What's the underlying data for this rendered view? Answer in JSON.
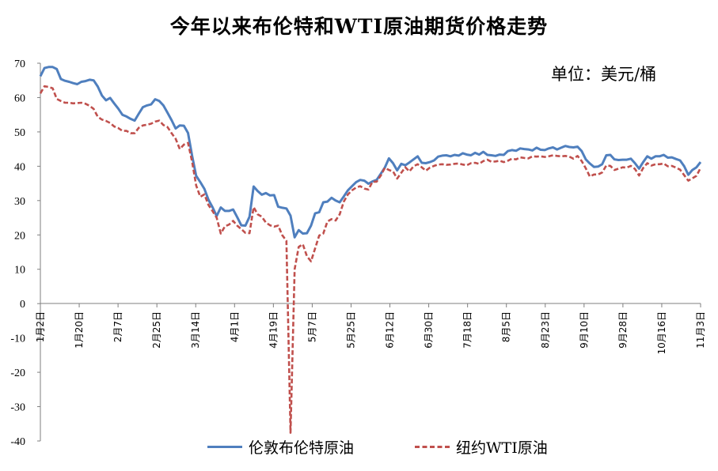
{
  "title": "今年以来布伦特和WTI原油期货价格走势",
  "unit_label": "单位：美元/桶",
  "chart_data": {
    "type": "line",
    "title": "今年以来布伦特和WTI原油期货价格走势",
    "xlabel": "",
    "ylabel": "",
    "ylim": [
      -40,
      70
    ],
    "y_ticks": [
      70,
      60,
      50,
      40,
      30,
      20,
      10,
      0,
      -10,
      -20,
      -30,
      -40
    ],
    "x_tick_labels": [
      "1月2日",
      "1月20日",
      "2月7日",
      "2月25日",
      "3月14日",
      "4月1日",
      "4月19日",
      "5月7日",
      "5月25日",
      "6月12日",
      "6月30日",
      "7月18日",
      "8月5日",
      "8月23日",
      "9月10日",
      "9月28日",
      "10月16日",
      "11月3日"
    ],
    "grid": false,
    "legend_position": "bottom",
    "colors": {
      "brent": "#4F7FBE",
      "wti": "#C0504D"
    },
    "series": [
      {
        "name": "伦敦布伦特原油",
        "style": "solid",
        "points": [
          [
            0,
            66.2
          ],
          [
            1,
            68.6
          ],
          [
            2,
            68.9
          ],
          [
            3,
            68.9
          ],
          [
            4,
            68.3
          ],
          [
            5,
            65.4
          ],
          [
            6,
            64.9
          ],
          [
            7,
            64.6
          ],
          [
            8,
            64.2
          ],
          [
            9,
            63.9
          ],
          [
            10,
            64.6
          ],
          [
            11,
            64.8
          ],
          [
            12,
            65.2
          ],
          [
            13,
            65.0
          ],
          [
            14,
            63.2
          ],
          [
            15,
            60.6
          ],
          [
            16,
            59.2
          ],
          [
            17,
            59.9
          ],
          [
            18,
            58.3
          ],
          [
            19,
            56.8
          ],
          [
            20,
            55.0
          ],
          [
            21,
            54.5
          ],
          [
            22,
            53.8
          ],
          [
            23,
            53.3
          ],
          [
            24,
            55.3
          ],
          [
            25,
            57.2
          ],
          [
            26,
            57.7
          ],
          [
            27,
            58.0
          ],
          [
            28,
            59.5
          ],
          [
            29,
            59.0
          ],
          [
            30,
            57.7
          ],
          [
            31,
            55.6
          ],
          [
            32,
            53.4
          ],
          [
            33,
            51.0
          ],
          [
            34,
            51.9
          ],
          [
            35,
            51.8
          ],
          [
            36,
            49.7
          ],
          [
            37,
            43.0
          ],
          [
            38,
            37.2
          ],
          [
            39,
            35.4
          ],
          [
            40,
            33.4
          ],
          [
            41,
            30.2
          ],
          [
            42,
            28.0
          ],
          [
            43,
            25.5
          ],
          [
            44,
            28.0
          ],
          [
            45,
            27.0
          ],
          [
            46,
            27.0
          ],
          [
            47,
            27.4
          ],
          [
            48,
            25.2
          ],
          [
            49,
            22.8
          ],
          [
            50,
            22.7
          ],
          [
            51,
            25.3
          ],
          [
            52,
            34.1
          ],
          [
            53,
            32.8
          ],
          [
            54,
            31.7
          ],
          [
            55,
            32.2
          ],
          [
            56,
            31.5
          ],
          [
            57,
            31.6
          ],
          [
            58,
            28.2
          ],
          [
            59,
            27.9
          ],
          [
            60,
            27.7
          ],
          [
            61,
            25.6
          ],
          [
            62,
            19.3
          ],
          [
            63,
            21.4
          ],
          [
            64,
            20.4
          ],
          [
            65,
            20.5
          ],
          [
            66,
            22.7
          ],
          [
            67,
            26.3
          ],
          [
            68,
            26.6
          ],
          [
            69,
            29.5
          ],
          [
            70,
            29.7
          ],
          [
            71,
            30.8
          ],
          [
            72,
            30.0
          ],
          [
            73,
            29.5
          ],
          [
            74,
            31.2
          ],
          [
            75,
            33.0
          ],
          [
            76,
            34.2
          ],
          [
            77,
            35.4
          ],
          [
            78,
            36.0
          ],
          [
            79,
            35.8
          ],
          [
            80,
            34.9
          ],
          [
            81,
            35.6
          ],
          [
            82,
            36.0
          ],
          [
            83,
            37.8
          ],
          [
            84,
            39.6
          ],
          [
            85,
            42.3
          ],
          [
            86,
            40.9
          ],
          [
            87,
            38.8
          ],
          [
            88,
            40.7
          ],
          [
            89,
            40.3
          ],
          [
            90,
            41.1
          ],
          [
            91,
            42.0
          ],
          [
            92,
            42.9
          ],
          [
            93,
            41.0
          ],
          [
            94,
            40.9
          ],
          [
            95,
            41.2
          ],
          [
            96,
            41.7
          ],
          [
            97,
            42.8
          ],
          [
            98,
            43.1
          ],
          [
            99,
            43.2
          ],
          [
            100,
            42.9
          ],
          [
            101,
            43.3
          ],
          [
            102,
            43.1
          ],
          [
            103,
            43.8
          ],
          [
            104,
            43.4
          ],
          [
            105,
            43.2
          ],
          [
            106,
            43.9
          ],
          [
            107,
            43.4
          ],
          [
            108,
            44.2
          ],
          [
            109,
            43.3
          ],
          [
            110,
            43.2
          ],
          [
            111,
            43.0
          ],
          [
            112,
            43.4
          ],
          [
            113,
            43.3
          ],
          [
            114,
            44.4
          ],
          [
            115,
            44.7
          ],
          [
            116,
            44.5
          ],
          [
            117,
            45.2
          ],
          [
            118,
            45.0
          ],
          [
            119,
            44.9
          ],
          [
            120,
            44.6
          ],
          [
            121,
            45.4
          ],
          [
            122,
            44.8
          ],
          [
            123,
            44.7
          ],
          [
            124,
            45.2
          ],
          [
            125,
            45.5
          ],
          [
            126,
            44.9
          ],
          [
            127,
            45.4
          ],
          [
            128,
            45.9
          ],
          [
            129,
            45.6
          ],
          [
            130,
            45.5
          ],
          [
            131,
            45.7
          ],
          [
            132,
            44.4
          ],
          [
            133,
            42.0
          ],
          [
            134,
            40.8
          ],
          [
            135,
            39.8
          ],
          [
            136,
            39.9
          ],
          [
            137,
            40.6
          ],
          [
            138,
            43.2
          ],
          [
            139,
            43.3
          ],
          [
            140,
            42.0
          ],
          [
            141,
            41.8
          ],
          [
            142,
            41.9
          ],
          [
            143,
            41.9
          ],
          [
            144,
            42.2
          ],
          [
            145,
            40.9
          ],
          [
            146,
            39.3
          ],
          [
            147,
            41.2
          ],
          [
            148,
            42.9
          ],
          [
            149,
            42.2
          ],
          [
            150,
            42.9
          ],
          [
            151,
            42.9
          ],
          [
            152,
            43.3
          ],
          [
            153,
            42.5
          ],
          [
            154,
            42.6
          ],
          [
            155,
            42.1
          ],
          [
            156,
            41.7
          ],
          [
            157,
            40.0
          ],
          [
            158,
            37.5
          ],
          [
            159,
            38.9
          ],
          [
            160,
            39.7
          ],
          [
            161,
            41.2
          ]
        ]
      },
      {
        "name": "纽约WTI原油",
        "style": "dashed",
        "points": [
          [
            0,
            61.2
          ],
          [
            1,
            63.3
          ],
          [
            2,
            63.1
          ],
          [
            3,
            62.7
          ],
          [
            4,
            59.6
          ],
          [
            5,
            59.0
          ],
          [
            6,
            58.5
          ],
          [
            7,
            58.5
          ],
          [
            8,
            58.3
          ],
          [
            9,
            58.4
          ],
          [
            10,
            58.5
          ],
          [
            11,
            58.2
          ],
          [
            12,
            57.6
          ],
          [
            13,
            56.7
          ],
          [
            14,
            54.4
          ],
          [
            15,
            53.6
          ],
          [
            16,
            53.2
          ],
          [
            17,
            52.6
          ],
          [
            18,
            51.6
          ],
          [
            19,
            51.1
          ],
          [
            20,
            50.3
          ],
          [
            21,
            50.3
          ],
          [
            22,
            49.6
          ],
          [
            23,
            49.6
          ],
          [
            24,
            51.2
          ],
          [
            25,
            51.9
          ],
          [
            26,
            52.1
          ],
          [
            27,
            52.4
          ],
          [
            28,
            53.0
          ],
          [
            29,
            53.3
          ],
          [
            30,
            52.0
          ],
          [
            31,
            51.4
          ],
          [
            32,
            49.6
          ],
          [
            33,
            48.0
          ],
          [
            34,
            45.0
          ],
          [
            35,
            46.3
          ],
          [
            36,
            46.8
          ],
          [
            37,
            41.3
          ],
          [
            38,
            34.4
          ],
          [
            39,
            31.1
          ],
          [
            40,
            31.8
          ],
          [
            41,
            28.7
          ],
          [
            42,
            26.9
          ],
          [
            43,
            25.0
          ],
          [
            44,
            20.4
          ],
          [
            45,
            22.5
          ],
          [
            46,
            23.0
          ],
          [
            47,
            24.1
          ],
          [
            48,
            22.7
          ],
          [
            49,
            21.7
          ],
          [
            50,
            20.6
          ],
          [
            51,
            20.5
          ],
          [
            52,
            28.1
          ],
          [
            53,
            26.0
          ],
          [
            54,
            25.3
          ],
          [
            55,
            23.6
          ],
          [
            56,
            22.8
          ],
          [
            57,
            22.4
          ],
          [
            58,
            22.7
          ],
          [
            59,
            19.9
          ],
          [
            60,
            18.3
          ],
          [
            61,
            -37.6
          ],
          [
            62,
            10.0
          ],
          [
            63,
            16.5
          ],
          [
            64,
            17.3
          ],
          [
            65,
            13.8
          ],
          [
            66,
            12.3
          ],
          [
            67,
            16.1
          ],
          [
            68,
            19.8
          ],
          [
            69,
            20.4
          ],
          [
            70,
            23.9
          ],
          [
            71,
            24.6
          ],
          [
            72,
            24.2
          ],
          [
            73,
            26.0
          ],
          [
            74,
            29.7
          ],
          [
            75,
            31.8
          ],
          [
            76,
            33.0
          ],
          [
            77,
            33.8
          ],
          [
            78,
            34.2
          ],
          [
            79,
            33.5
          ],
          [
            80,
            33.2
          ],
          [
            81,
            35.5
          ],
          [
            82,
            35.5
          ],
          [
            83,
            37.3
          ],
          [
            84,
            39.5
          ],
          [
            85,
            38.9
          ],
          [
            86,
            38.5
          ],
          [
            87,
            36.4
          ],
          [
            88,
            38.1
          ],
          [
            89,
            39.7
          ],
          [
            90,
            38.5
          ],
          [
            91,
            40.0
          ],
          [
            92,
            40.6
          ],
          [
            93,
            39.7
          ],
          [
            94,
            38.7
          ],
          [
            95,
            39.6
          ],
          [
            96,
            40.1
          ],
          [
            97,
            40.5
          ],
          [
            98,
            40.6
          ],
          [
            99,
            40.4
          ],
          [
            100,
            40.5
          ],
          [
            101,
            40.7
          ],
          [
            102,
            40.8
          ],
          [
            103,
            40.5
          ],
          [
            104,
            40.3
          ],
          [
            105,
            40.9
          ],
          [
            106,
            41.0
          ],
          [
            107,
            40.7
          ],
          [
            108,
            41.5
          ],
          [
            109,
            41.9
          ],
          [
            110,
            41.3
          ],
          [
            111,
            41.4
          ],
          [
            112,
            41.6
          ],
          [
            113,
            41.2
          ],
          [
            114,
            41.6
          ],
          [
            115,
            42.2
          ],
          [
            116,
            42.0
          ],
          [
            117,
            42.6
          ],
          [
            118,
            42.4
          ],
          [
            119,
            42.3
          ],
          [
            120,
            42.9
          ],
          [
            121,
            42.8
          ],
          [
            122,
            42.9
          ],
          [
            123,
            42.7
          ],
          [
            124,
            42.9
          ],
          [
            125,
            43.2
          ],
          [
            126,
            43.0
          ],
          [
            127,
            42.9
          ],
          [
            128,
            43.0
          ],
          [
            129,
            42.8
          ],
          [
            130,
            42.2
          ],
          [
            131,
            43.0
          ],
          [
            132,
            41.5
          ],
          [
            133,
            39.4
          ],
          [
            134,
            37.0
          ],
          [
            135,
            37.6
          ],
          [
            136,
            37.6
          ],
          [
            137,
            38.2
          ],
          [
            138,
            40.2
          ],
          [
            139,
            40.1
          ],
          [
            140,
            38.9
          ],
          [
            141,
            39.3
          ],
          [
            142,
            39.7
          ],
          [
            143,
            39.6
          ],
          [
            144,
            40.1
          ],
          [
            145,
            39.2
          ],
          [
            146,
            37.3
          ],
          [
            147,
            39.5
          ],
          [
            148,
            40.9
          ],
          [
            149,
            40.2
          ],
          [
            150,
            40.6
          ],
          [
            151,
            40.6
          ],
          [
            152,
            40.8
          ],
          [
            153,
            40.0
          ],
          [
            154,
            40.1
          ],
          [
            155,
            39.6
          ],
          [
            156,
            39.0
          ],
          [
            157,
            37.4
          ],
          [
            158,
            35.8
          ],
          [
            159,
            36.5
          ],
          [
            160,
            37.2
          ],
          [
            161,
            39.5
          ]
        ]
      }
    ]
  }
}
